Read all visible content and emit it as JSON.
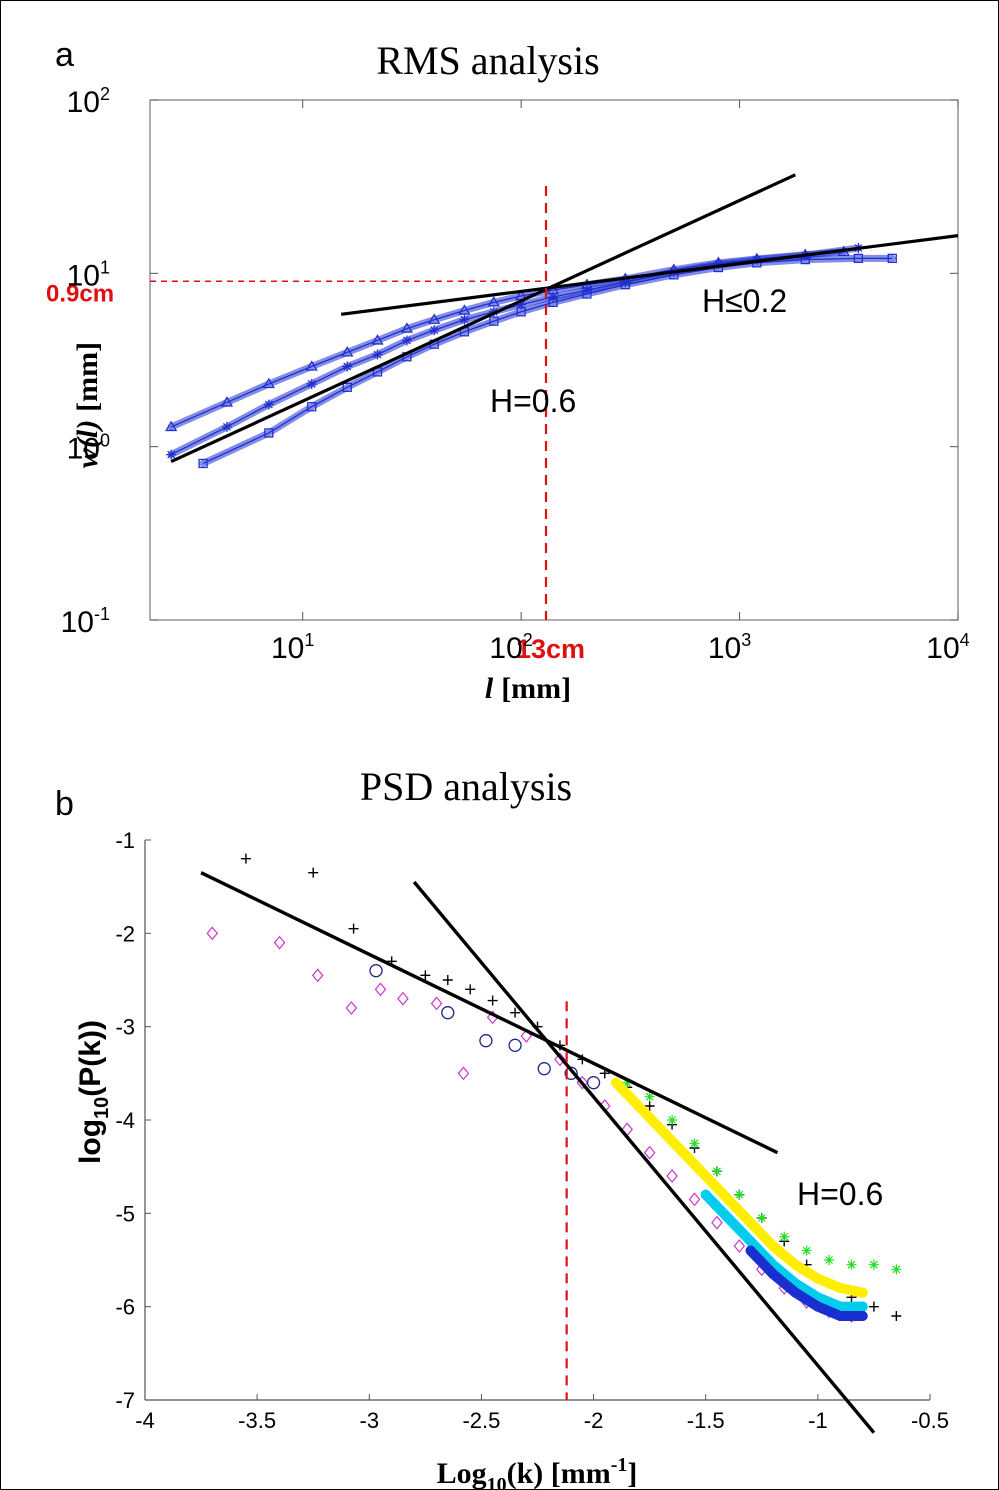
{
  "figure": {
    "panels": [
      "a",
      "b"
    ]
  },
  "chart_data": [
    {
      "type": "scatter",
      "panel_label": "a",
      "title": "RMS analysis",
      "xlabel_var": "l",
      "xlabel_unit": "[mm]",
      "ylabel_var": "w(l)",
      "ylabel_unit": "[mm]",
      "x_scale": "log",
      "y_scale": "log",
      "xlim": [
        2,
        10000
      ],
      "ylim": [
        0.1,
        100
      ],
      "xticks": [
        {
          "value": 10,
          "base": "10",
          "exp": "1"
        },
        {
          "value": 100,
          "base": "10",
          "exp": "2"
        },
        {
          "value": 1000,
          "base": "10",
          "exp": "3"
        },
        {
          "value": 10000,
          "base": "10",
          "exp": "4"
        }
      ],
      "yticks": [
        {
          "value": 0.1,
          "base": "10",
          "exp": "-1"
        },
        {
          "value": 1,
          "base": "10",
          "exp": "0"
        },
        {
          "value": 10,
          "base": "10",
          "exp": "1"
        },
        {
          "value": 100,
          "base": "10",
          "exp": "2"
        }
      ],
      "colors": {
        "data": "#1f2fd0",
        "fit": "#000000",
        "marker": "#e01010"
      },
      "series": [
        {
          "marker": "triangle",
          "x": [
            2.5,
            4.5,
            7,
            11,
            16,
            22,
            30,
            40,
            55,
            75,
            100,
            140,
            200,
            300,
            500,
            800,
            1200,
            2000,
            3000
          ],
          "y": [
            1.3,
            1.8,
            2.3,
            2.9,
            3.5,
            4.1,
            4.8,
            5.4,
            6.1,
            6.8,
            7.4,
            8.0,
            8.6,
            9.3,
            10.5,
            11.5,
            12.1,
            12.8,
            13.3
          ]
        },
        {
          "marker": "star",
          "x": [
            2.5,
            4.5,
            7,
            11,
            16,
            22,
            30,
            40,
            55,
            75,
            100,
            140,
            200,
            300,
            500,
            800,
            1200,
            2000,
            3500
          ],
          "y": [
            0.9,
            1.3,
            1.75,
            2.3,
            2.9,
            3.4,
            4.1,
            4.7,
            5.4,
            6.0,
            6.6,
            7.3,
            8.0,
            8.9,
            10.2,
            11.3,
            12.0,
            12.7,
            14.0
          ]
        },
        {
          "marker": "square",
          "x": [
            3.5,
            7,
            11,
            16,
            22,
            30,
            40,
            55,
            75,
            100,
            140,
            200,
            300,
            500,
            800,
            1200,
            2000,
            3500,
            5000
          ],
          "y": [
            0.8,
            1.2,
            1.7,
            2.2,
            2.7,
            3.3,
            3.9,
            4.6,
            5.3,
            6.0,
            6.8,
            7.6,
            8.6,
            9.8,
            10.8,
            11.5,
            12.0,
            12.2,
            12.2
          ]
        }
      ],
      "fits": [
        {
          "label": "H=0.6",
          "x": [
            2.5,
            1800
          ],
          "y": [
            0.82,
            37
          ]
        },
        {
          "label": "H≤0.2",
          "x": [
            15,
            10000
          ],
          "y": [
            5.8,
            16.5
          ]
        }
      ],
      "markers": {
        "x_value": 130,
        "x_label": "13cm",
        "y_value": 9,
        "y_label": "0.9cm"
      }
    },
    {
      "type": "scatter",
      "panel_label": "b",
      "title": "PSD analysis",
      "xlabel_main": "Log",
      "xlabel_sub": "10",
      "xlabel_rest": "(k) [mm",
      "xlabel_sup": "-1",
      "xlabel_end": "]",
      "ylabel_main": "log",
      "ylabel_sub": "10",
      "ylabel_rest": "(P(k))",
      "xlim": [
        -4,
        -0.5
      ],
      "ylim": [
        -7,
        -1
      ],
      "xticks": [
        "-4",
        "-3.5",
        "-3",
        "-2.5",
        "-2",
        "-1.5",
        "-1",
        "-0.5"
      ],
      "yticks": [
        "-7",
        "-6",
        "-5",
        "-4",
        "-3",
        "-2",
        "-1"
      ],
      "colors": {
        "plus": "#000000",
        "diamond": "#cc33cc",
        "circle": "#22228a",
        "star_green": "#22dd22",
        "yellow": "#ffee00",
        "cyan": "#00ccee",
        "blue": "#1a2fd0",
        "red_line": "#e01010"
      },
      "series": [
        {
          "marker": "plus",
          "x": [
            -3.55,
            -3.25,
            -3.07,
            -2.9,
            -2.75,
            -2.65,
            -2.55,
            -2.45,
            -2.35,
            -2.25,
            -2.15,
            -2.05,
            -1.95,
            -1.85,
            -1.75,
            -1.65,
            -1.55,
            -1.45,
            -1.35,
            -1.25,
            -1.15,
            -1.05,
            -0.95,
            -0.85,
            -0.75,
            -0.65
          ],
          "y": [
            -1.2,
            -1.35,
            -1.95,
            -2.3,
            -2.45,
            -2.5,
            -2.6,
            -2.72,
            -2.85,
            -3.0,
            -3.2,
            -3.35,
            -3.5,
            -3.65,
            -3.85,
            -4.05,
            -4.3,
            -4.55,
            -4.8,
            -5.05,
            -5.3,
            -5.55,
            -5.75,
            -5.9,
            -6.0,
            -6.1
          ]
        },
        {
          "marker": "diamond",
          "x": [
            -3.7,
            -3.4,
            -3.23,
            -3.08,
            -2.95,
            -2.85,
            -2.7,
            -2.58,
            -2.45,
            -2.3,
            -2.15,
            -2.05,
            -1.95,
            -1.85,
            -1.75,
            -1.65,
            -1.55,
            -1.45,
            -1.35,
            -1.25,
            -1.15,
            -1.05,
            -0.95,
            -0.85
          ],
          "y": [
            -2.0,
            -2.1,
            -2.45,
            -2.8,
            -2.6,
            -2.7,
            -2.75,
            -3.5,
            -2.9,
            -3.1,
            -3.35,
            -3.6,
            -3.85,
            -4.1,
            -4.35,
            -4.6,
            -4.85,
            -5.1,
            -5.35,
            -5.6,
            -5.8,
            -5.95,
            -6.05,
            -6.1
          ]
        },
        {
          "marker": "circle",
          "x": [
            -2.97,
            -2.65,
            -2.48,
            -2.35,
            -2.22,
            -2.1,
            -2.0
          ],
          "y": [
            -2.4,
            -2.85,
            -3.15,
            -3.2,
            -3.45,
            -3.5,
            -3.6
          ]
        },
        {
          "marker": "star_green",
          "x": [
            -1.85,
            -1.75,
            -1.65,
            -1.55,
            -1.45,
            -1.35,
            -1.25,
            -1.15,
            -1.05,
            -0.95,
            -0.85,
            -0.75,
            -0.65
          ],
          "y": [
            -3.6,
            -3.75,
            -4.0,
            -4.25,
            -4.55,
            -4.8,
            -5.05,
            -5.25,
            -5.4,
            -5.5,
            -5.55,
            -5.55,
            -5.6
          ]
        },
        {
          "marker": "yellow",
          "x": [
            -1.9,
            -1.8,
            -1.7,
            -1.6,
            -1.5,
            -1.4,
            -1.3,
            -1.2,
            -1.1,
            -1.0,
            -0.9,
            -0.8
          ],
          "y": [
            -3.6,
            -3.85,
            -4.1,
            -4.35,
            -4.6,
            -4.85,
            -5.1,
            -5.35,
            -5.55,
            -5.7,
            -5.8,
            -5.85
          ]
        },
        {
          "marker": "cyan",
          "x": [
            -1.5,
            -1.4,
            -1.3,
            -1.2,
            -1.1,
            -1.0,
            -0.9,
            -0.8
          ],
          "y": [
            -4.8,
            -5.05,
            -5.3,
            -5.55,
            -5.75,
            -5.9,
            -6.0,
            -6.0
          ]
        },
        {
          "marker": "blue",
          "x": [
            -1.3,
            -1.2,
            -1.1,
            -1.0,
            -0.9,
            -0.8
          ],
          "y": [
            -5.4,
            -5.65,
            -5.85,
            -6.0,
            -6.1,
            -6.1
          ]
        }
      ],
      "fits": [
        {
          "x": [
            -3.75,
            -1.18
          ],
          "y": [
            -1.35,
            -4.35
          ]
        },
        {
          "x": [
            -2.8,
            -0.75
          ],
          "y": [
            -1.45,
            -7.35
          ]
        }
      ],
      "annotation": {
        "label": "H=0.6",
        "x": -0.6,
        "y": -4.8
      },
      "vline_x": -2.12
    }
  ]
}
